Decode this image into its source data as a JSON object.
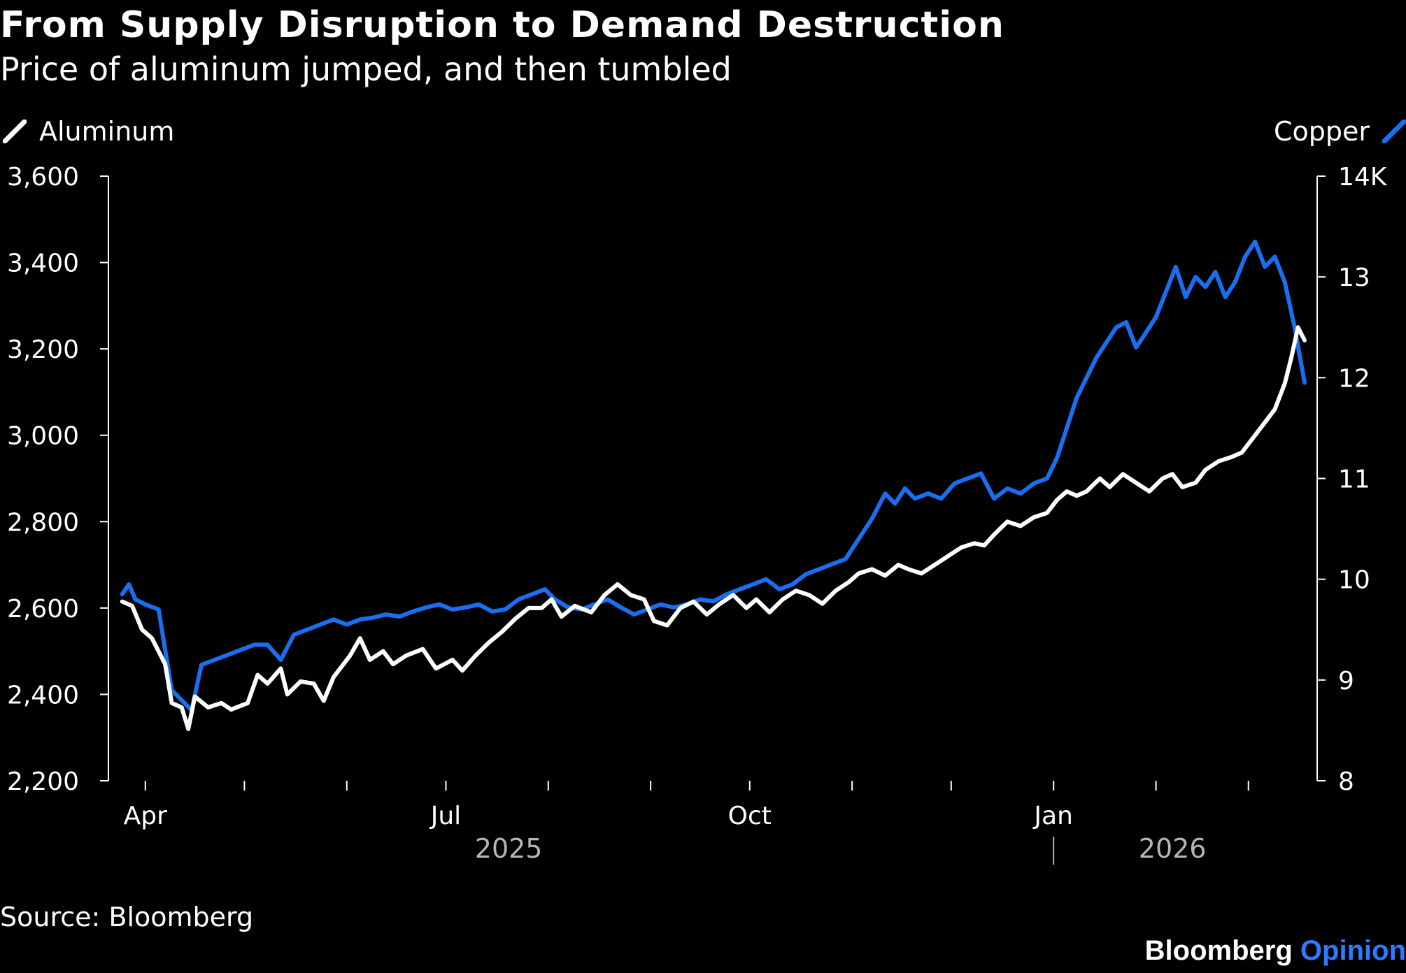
{
  "chart_data": {
    "type": "line",
    "title": "From Supply Disruption to Demand Destruction",
    "subtitle": "Price of aluminum jumped, and then tumbled",
    "source": "Source: Bloomberg",
    "brand": {
      "primary": "Bloomberg",
      "accent": "Opinion"
    },
    "x_range": [
      "2025-03-24",
      "2026-03-18"
    ],
    "x_ticks": [
      {
        "date": "2025-04-01",
        "label": "Apr"
      },
      {
        "date": "2025-05-01",
        "label": ""
      },
      {
        "date": "2025-06-01",
        "label": ""
      },
      {
        "date": "2025-07-01",
        "label": "Jul"
      },
      {
        "date": "2025-08-01",
        "label": ""
      },
      {
        "date": "2025-09-01",
        "label": ""
      },
      {
        "date": "2025-10-01",
        "label": "Oct"
      },
      {
        "date": "2025-11-01",
        "label": ""
      },
      {
        "date": "2025-12-01",
        "label": ""
      },
      {
        "date": "2026-01-01",
        "label": "Jan"
      },
      {
        "date": "2026-02-01",
        "label": ""
      },
      {
        "date": "2026-03-01",
        "label": ""
      }
    ],
    "years": [
      {
        "label": "2025",
        "date": "2025-07-20"
      },
      {
        "label": "2026",
        "date": "2026-02-06"
      }
    ],
    "year_divider": "2026-01-01",
    "y_left": {
      "min": 2200,
      "max": 3600,
      "ticks": [
        "2,200",
        "2,400",
        "2,600",
        "2,800",
        "3,000",
        "3,200",
        "3,400",
        "3,600"
      ],
      "tick_values": [
        2200,
        2400,
        2600,
        2800,
        3000,
        3200,
        3400,
        3600
      ]
    },
    "y_right": {
      "min": 8,
      "max": 14,
      "ticks": [
        "8",
        "9",
        "10",
        "11",
        "12",
        "13",
        "14K"
      ],
      "tick_values": [
        8,
        9,
        10,
        11,
        12,
        13,
        14
      ]
    },
    "series": [
      {
        "name": "Aluminum",
        "axis": "left",
        "color": "#ffffff",
        "points": [
          [
            "2025-03-25",
            2615
          ],
          [
            "2025-03-28",
            2605
          ],
          [
            "2025-03-31",
            2550
          ],
          [
            "2025-04-03",
            2530
          ],
          [
            "2025-04-07",
            2470
          ],
          [
            "2025-04-09",
            2380
          ],
          [
            "2025-04-12",
            2370
          ],
          [
            "2025-04-14",
            2320
          ],
          [
            "2025-04-16",
            2395
          ],
          [
            "2025-04-20",
            2370
          ],
          [
            "2025-04-24",
            2380
          ],
          [
            "2025-04-27",
            2365
          ],
          [
            "2025-05-02",
            2380
          ],
          [
            "2025-05-05",
            2445
          ],
          [
            "2025-05-08",
            2425
          ],
          [
            "2025-05-12",
            2460
          ],
          [
            "2025-05-14",
            2400
          ],
          [
            "2025-05-18",
            2430
          ],
          [
            "2025-05-22",
            2425
          ],
          [
            "2025-05-25",
            2385
          ],
          [
            "2025-05-28",
            2440
          ],
          [
            "2025-06-02",
            2490
          ],
          [
            "2025-06-05",
            2530
          ],
          [
            "2025-06-08",
            2480
          ],
          [
            "2025-06-12",
            2500
          ],
          [
            "2025-06-15",
            2470
          ],
          [
            "2025-06-19",
            2490
          ],
          [
            "2025-06-24",
            2505
          ],
          [
            "2025-06-28",
            2460
          ],
          [
            "2025-07-03",
            2480
          ],
          [
            "2025-07-06",
            2455
          ],
          [
            "2025-07-10",
            2490
          ],
          [
            "2025-07-14",
            2520
          ],
          [
            "2025-07-18",
            2545
          ],
          [
            "2025-07-22",
            2575
          ],
          [
            "2025-07-26",
            2600
          ],
          [
            "2025-07-30",
            2600
          ],
          [
            "2025-08-02",
            2620
          ],
          [
            "2025-08-05",
            2580
          ],
          [
            "2025-08-09",
            2605
          ],
          [
            "2025-08-14",
            2590
          ],
          [
            "2025-08-18",
            2630
          ],
          [
            "2025-08-22",
            2655
          ],
          [
            "2025-08-26",
            2630
          ],
          [
            "2025-08-30",
            2620
          ],
          [
            "2025-09-02",
            2570
          ],
          [
            "2025-09-06",
            2560
          ],
          [
            "2025-09-10",
            2600
          ],
          [
            "2025-09-14",
            2615
          ],
          [
            "2025-09-18",
            2585
          ],
          [
            "2025-09-22",
            2610
          ],
          [
            "2025-09-26",
            2630
          ],
          [
            "2025-09-30",
            2600
          ],
          [
            "2025-10-03",
            2620
          ],
          [
            "2025-10-07",
            2590
          ],
          [
            "2025-10-11",
            2620
          ],
          [
            "2025-10-15",
            2640
          ],
          [
            "2025-10-19",
            2630
          ],
          [
            "2025-10-23",
            2610
          ],
          [
            "2025-10-27",
            2640
          ],
          [
            "2025-10-31",
            2660
          ],
          [
            "2025-11-03",
            2680
          ],
          [
            "2025-11-07",
            2690
          ],
          [
            "2025-11-11",
            2675
          ],
          [
            "2025-11-15",
            2700
          ],
          [
            "2025-11-18",
            2690
          ],
          [
            "2025-11-22",
            2680
          ],
          [
            "2025-11-26",
            2700
          ],
          [
            "2025-11-30",
            2720
          ],
          [
            "2025-12-04",
            2740
          ],
          [
            "2025-12-08",
            2750
          ],
          [
            "2025-12-11",
            2745
          ],
          [
            "2025-12-14",
            2770
          ],
          [
            "2025-12-18",
            2800
          ],
          [
            "2025-12-22",
            2790
          ],
          [
            "2025-12-26",
            2810
          ],
          [
            "2025-12-30",
            2820
          ],
          [
            "2026-01-02",
            2850
          ],
          [
            "2026-01-05",
            2870
          ],
          [
            "2026-01-08",
            2860
          ],
          [
            "2026-01-11",
            2870
          ],
          [
            "2026-01-15",
            2900
          ],
          [
            "2026-01-18",
            2880
          ],
          [
            "2026-01-22",
            2910
          ],
          [
            "2026-01-26",
            2890
          ],
          [
            "2026-01-30",
            2870
          ],
          [
            "2026-02-03",
            2900
          ],
          [
            "2026-02-06",
            2910
          ],
          [
            "2026-02-09",
            2880
          ],
          [
            "2026-02-13",
            2890
          ],
          [
            "2026-02-16",
            2920
          ],
          [
            "2026-02-20",
            2940
          ],
          [
            "2026-02-24",
            2950
          ],
          [
            "2026-02-27",
            2960
          ],
          [
            "2026-03-02",
            2990
          ],
          [
            "2026-03-05",
            3020
          ],
          [
            "2026-03-09",
            3060
          ],
          [
            "2026-03-12",
            3120
          ],
          [
            "2026-03-14",
            3180
          ],
          [
            "2026-03-16",
            3250
          ],
          [
            "2026-03-18",
            3220
          ]
        ]
      },
      {
        "name": "Copper",
        "axis": "right",
        "color": "#1a6ff0",
        "points": [
          [
            "2025-03-25",
            9.85
          ],
          [
            "2025-03-27",
            9.95
          ],
          [
            "2025-03-29",
            9.8
          ],
          [
            "2025-04-01",
            9.75
          ],
          [
            "2025-04-05",
            9.7
          ],
          [
            "2025-04-07",
            9.3
          ],
          [
            "2025-04-09",
            8.9
          ],
          [
            "2025-04-12",
            8.8
          ],
          [
            "2025-04-15",
            8.7
          ],
          [
            "2025-04-18",
            9.15
          ],
          [
            "2025-04-22",
            9.2
          ],
          [
            "2025-04-26",
            9.25
          ],
          [
            "2025-04-30",
            9.3
          ],
          [
            "2025-05-04",
            9.35
          ],
          [
            "2025-05-08",
            9.35
          ],
          [
            "2025-05-12",
            9.2
          ],
          [
            "2025-05-16",
            9.45
          ],
          [
            "2025-05-20",
            9.5
          ],
          [
            "2025-05-24",
            9.55
          ],
          [
            "2025-05-28",
            9.6
          ],
          [
            "2025-06-01",
            9.55
          ],
          [
            "2025-06-05",
            9.6
          ],
          [
            "2025-06-09",
            9.62
          ],
          [
            "2025-06-13",
            9.65
          ],
          [
            "2025-06-17",
            9.63
          ],
          [
            "2025-06-21",
            9.68
          ],
          [
            "2025-06-25",
            9.72
          ],
          [
            "2025-06-29",
            9.75
          ],
          [
            "2025-07-03",
            9.7
          ],
          [
            "2025-07-07",
            9.72
          ],
          [
            "2025-07-11",
            9.75
          ],
          [
            "2025-07-15",
            9.68
          ],
          [
            "2025-07-19",
            9.7
          ],
          [
            "2025-07-23",
            9.8
          ],
          [
            "2025-07-27",
            9.85
          ],
          [
            "2025-07-31",
            9.9
          ],
          [
            "2025-08-03",
            9.8
          ],
          [
            "2025-08-07",
            9.72
          ],
          [
            "2025-08-11",
            9.7
          ],
          [
            "2025-08-15",
            9.75
          ],
          [
            "2025-08-19",
            9.8
          ],
          [
            "2025-08-23",
            9.72
          ],
          [
            "2025-08-27",
            9.65
          ],
          [
            "2025-08-31",
            9.7
          ],
          [
            "2025-09-04",
            9.75
          ],
          [
            "2025-09-08",
            9.72
          ],
          [
            "2025-09-12",
            9.75
          ],
          [
            "2025-09-16",
            9.8
          ],
          [
            "2025-09-20",
            9.78
          ],
          [
            "2025-09-24",
            9.85
          ],
          [
            "2025-09-28",
            9.9
          ],
          [
            "2025-10-02",
            9.95
          ],
          [
            "2025-10-06",
            10.0
          ],
          [
            "2025-10-10",
            9.9
          ],
          [
            "2025-10-14",
            9.95
          ],
          [
            "2025-10-18",
            10.05
          ],
          [
            "2025-10-22",
            10.1
          ],
          [
            "2025-10-26",
            10.15
          ],
          [
            "2025-10-30",
            10.2
          ],
          [
            "2025-11-03",
            10.4
          ],
          [
            "2025-11-07",
            10.6
          ],
          [
            "2025-11-11",
            10.85
          ],
          [
            "2025-11-14",
            10.75
          ],
          [
            "2025-11-17",
            10.9
          ],
          [
            "2025-11-20",
            10.8
          ],
          [
            "2025-11-24",
            10.85
          ],
          [
            "2025-11-28",
            10.8
          ],
          [
            "2025-12-02",
            10.95
          ],
          [
            "2025-12-06",
            11.0
          ],
          [
            "2025-12-10",
            11.05
          ],
          [
            "2025-12-14",
            10.8
          ],
          [
            "2025-12-18",
            10.9
          ],
          [
            "2025-12-22",
            10.85
          ],
          [
            "2025-12-26",
            10.95
          ],
          [
            "2025-12-30",
            11.0
          ],
          [
            "2026-01-02",
            11.2
          ],
          [
            "2026-01-05",
            11.5
          ],
          [
            "2026-01-08",
            11.8
          ],
          [
            "2026-01-11",
            12.0
          ],
          [
            "2026-01-14",
            12.2
          ],
          [
            "2026-01-17",
            12.35
          ],
          [
            "2026-01-20",
            12.5
          ],
          [
            "2026-01-23",
            12.55
          ],
          [
            "2026-01-26",
            12.3
          ],
          [
            "2026-01-29",
            12.45
          ],
          [
            "2026-02-01",
            12.6
          ],
          [
            "2026-02-04",
            12.85
          ],
          [
            "2026-02-07",
            13.1
          ],
          [
            "2026-02-10",
            12.8
          ],
          [
            "2026-02-13",
            13.0
          ],
          [
            "2026-02-16",
            12.9
          ],
          [
            "2026-02-19",
            13.05
          ],
          [
            "2026-02-22",
            12.8
          ],
          [
            "2026-02-25",
            12.95
          ],
          [
            "2026-02-28",
            13.2
          ],
          [
            "2026-03-03",
            13.35
          ],
          [
            "2026-03-06",
            13.1
          ],
          [
            "2026-03-09",
            13.2
          ],
          [
            "2026-03-12",
            12.95
          ],
          [
            "2026-03-15",
            12.5
          ],
          [
            "2026-03-18",
            11.95
          ]
        ]
      }
    ]
  }
}
